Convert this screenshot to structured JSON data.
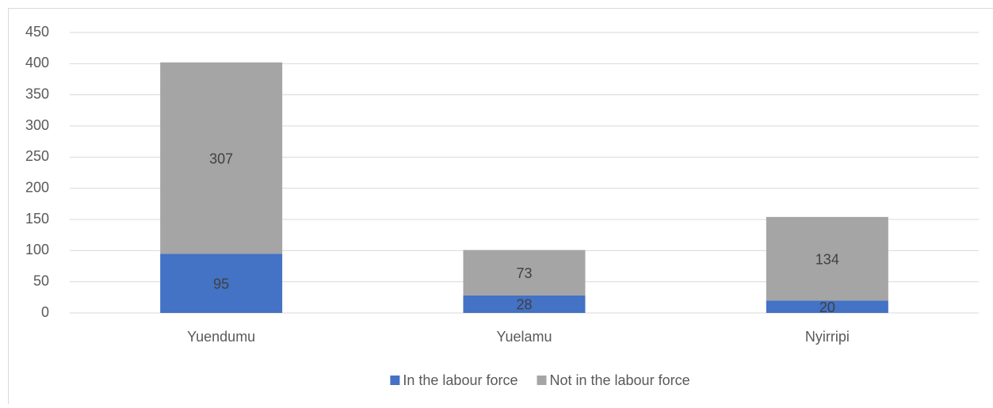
{
  "chart_data": {
    "type": "bar",
    "stacked": true,
    "categories": [
      "Yuendumu",
      "Yuelamu",
      "Nyirripi"
    ],
    "series": [
      {
        "name": "In the labour force",
        "color": "#4472c4",
        "values": [
          95,
          28,
          20
        ]
      },
      {
        "name": "Not in the labour force",
        "color": "#a5a5a5",
        "values": [
          307,
          73,
          134
        ]
      }
    ],
    "ylim": [
      0,
      450
    ],
    "yticks": [
      0,
      50,
      100,
      150,
      200,
      250,
      300,
      350,
      400,
      450
    ],
    "grid": true,
    "legend": "bottom"
  }
}
